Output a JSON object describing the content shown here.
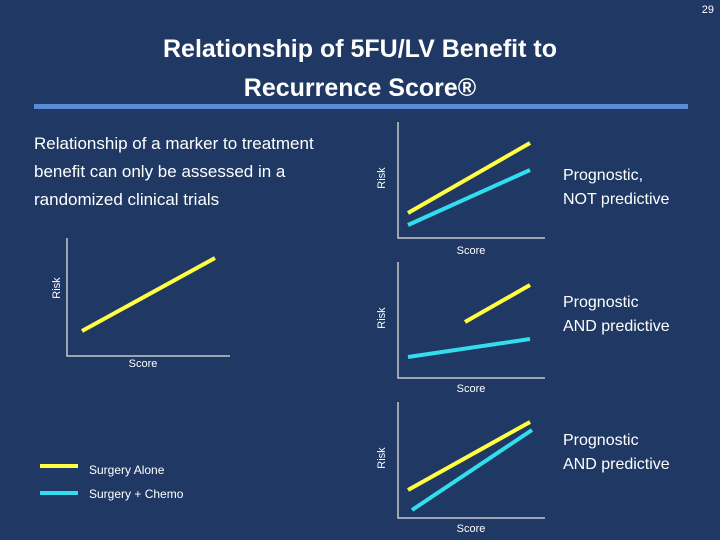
{
  "slide_number": "29",
  "title_line1": "Relationship of 5FU/LV Benefit to",
  "title_line2": "Recurrence Score®",
  "intro_text": "Relationship of a marker to treatment benefit can only be assessed in a randomized clinical trials",
  "axis": {
    "x_label": "Score",
    "y_label": "Risk"
  },
  "panels": [
    {
      "desc_line1": "Prognostic,",
      "desc_line2": "NOT predictive"
    },
    {
      "desc_line1": "Prognostic",
      "desc_line2": "AND predictive"
    },
    {
      "desc_line1": "Prognostic",
      "desc_line2": "AND predictive"
    }
  ],
  "legend": [
    {
      "label": "Surgery Alone",
      "color": "#ffff44"
    },
    {
      "label": "Surgery + Chemo",
      "color": "#33ddee"
    }
  ],
  "colors": {
    "background": "#1f3864",
    "axis": "#c8c8c8",
    "rule": "#5b8bd6"
  }
}
